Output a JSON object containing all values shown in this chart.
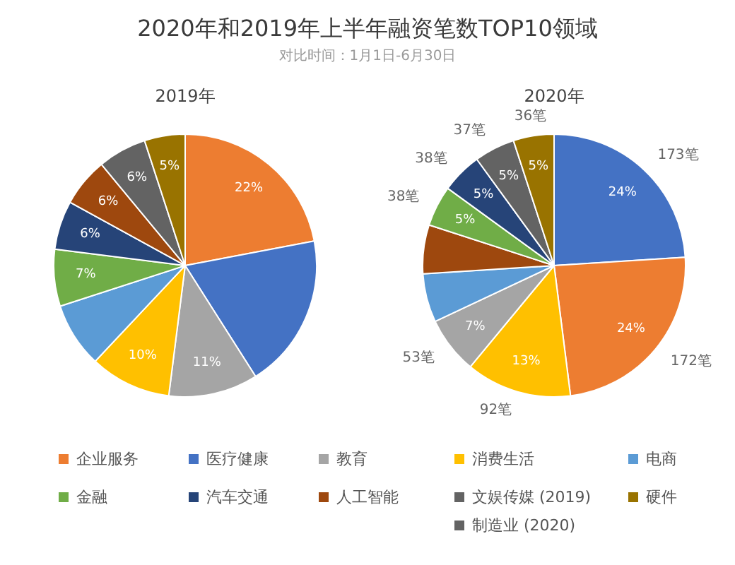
{
  "chart_data": [
    {
      "type": "other",
      "title": "2020年和2019年上半年融资笔数TOP10领域",
      "subtitle": "对比时间：1月1日-6月30日"
    },
    {
      "type": "pie",
      "title": "2019年",
      "categories": [
        "企业服务",
        "医疗健康",
        "教育",
        "消费生活",
        "电商",
        "金融",
        "汽车交通",
        "人工智能",
        "文娱传媒 (2019)",
        "硬件"
      ],
      "values": [
        22,
        19,
        11,
        10,
        8,
        7,
        6,
        6,
        6,
        5
      ],
      "colors": [
        "#ed7d31",
        "#4472c4",
        "#a5a5a5",
        "#ffc000",
        "#5b9bd5",
        "#70ad47",
        "#264478",
        "#9e480e",
        "#636363",
        "#997300"
      ],
      "value_labels": [
        "22%",
        null,
        "11%",
        "10%",
        null,
        "7%",
        "6%",
        "6%",
        "6%",
        "5%"
      ],
      "legend": "bottom"
    },
    {
      "type": "pie",
      "title": "2020年",
      "categories": [
        null,
        null,
        null,
        null,
        null,
        null,
        null,
        null,
        "制造业 (2020)",
        null
      ],
      "values": [
        24,
        24,
        13,
        7,
        6,
        6,
        5,
        5,
        5,
        5
      ],
      "colors": [
        "#4472c4",
        "#ed7d31",
        "#ffc000",
        "#a5a5a5",
        "#5b9bd5",
        "#9e480e",
        "#70ad47",
        "#264478",
        "#636363",
        "#997300"
      ],
      "value_labels": [
        "24%",
        "24%",
        "13%",
        "7%",
        null,
        null,
        "5%",
        "5%",
        "5%",
        "5%"
      ],
      "annotations": [
        {
          "text": "173笔",
          "x": "医疗健康"
        },
        {
          "text": "172笔",
          "x": "企业服务"
        },
        {
          "text": "92笔",
          "x": "消费生活"
        },
        {
          "text": "53笔",
          "x": "教育"
        },
        {
          "text": "38笔",
          "x": "金融"
        },
        {
          "text": "38笔",
          "x": "汽车交通"
        },
        {
          "text": "37笔",
          "x": "制造业 (2020)"
        },
        {
          "text": "36笔",
          "x": "硬件"
        }
      ],
      "legend": "bottom"
    }
  ]
}
